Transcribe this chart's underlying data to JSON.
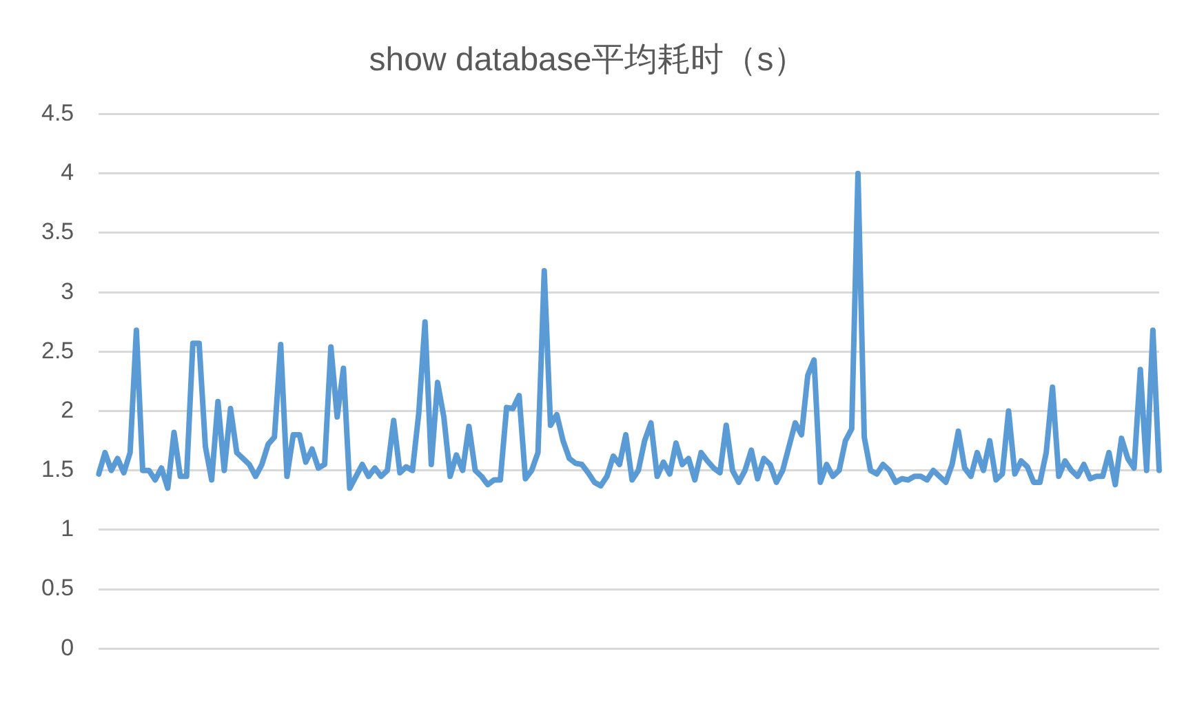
{
  "chart_data": {
    "type": "line",
    "title": "show database平均耗时（s）",
    "categories": [
      null,
      null,
      null,
      null,
      null,
      null,
      null,
      null,
      null,
      null,
      null,
      null,
      null,
      null,
      null,
      null,
      null,
      null,
      null,
      null,
      null,
      null,
      null,
      null,
      null,
      null,
      null,
      null,
      null,
      null,
      null,
      null,
      null,
      null,
      null,
      null,
      null,
      null,
      null,
      null,
      null,
      null,
      null,
      null,
      null,
      null,
      null,
      null,
      null,
      null,
      null,
      null,
      null,
      null,
      null,
      null,
      null,
      null,
      null,
      null,
      null,
      null,
      null,
      null,
      null,
      null,
      null,
      null,
      null,
      null,
      null,
      null,
      null,
      null,
      null,
      null,
      null,
      null,
      null,
      null,
      null,
      null,
      null,
      null,
      null,
      null,
      null,
      null,
      null,
      null,
      null,
      null,
      null,
      null,
      null,
      null,
      null,
      null,
      null,
      null,
      null,
      null,
      null,
      null,
      null,
      null,
      null,
      null,
      null,
      null,
      null,
      null,
      null,
      null,
      null,
      null,
      null,
      null,
      null,
      null,
      null,
      null,
      null,
      null,
      null,
      null,
      null,
      null,
      null,
      null,
      null,
      null,
      null,
      null,
      null,
      null,
      null,
      null,
      null,
      null,
      null,
      null,
      null,
      null,
      null,
      null,
      null,
      null,
      null,
      null,
      null,
      null,
      null,
      null,
      null,
      null,
      null,
      null,
      null,
      null,
      null,
      null,
      null,
      null,
      null,
      null,
      null,
      null,
      null,
      null
    ],
    "series": [
      {
        "color": "#5b9bd5",
        "values": [
          1.47,
          1.65,
          1.5,
          1.6,
          1.48,
          1.65,
          2.68,
          1.5,
          1.5,
          1.42,
          1.52,
          1.35,
          1.82,
          1.45,
          1.45,
          2.57,
          2.57,
          1.7,
          1.42,
          2.08,
          1.5,
          2.02,
          1.65,
          1.6,
          1.55,
          1.45,
          1.55,
          1.72,
          1.78,
          2.56,
          1.45,
          1.8,
          1.8,
          1.57,
          1.68,
          1.52,
          1.55,
          2.54,
          1.95,
          2.36,
          1.35,
          1.45,
          1.55,
          1.45,
          1.52,
          1.45,
          1.5,
          1.92,
          1.48,
          1.53,
          1.5,
          1.98,
          2.75,
          1.55,
          2.24,
          1.95,
          1.45,
          1.63,
          1.5,
          1.87,
          1.5,
          1.45,
          1.38,
          1.42,
          1.42,
          2.03,
          2.02,
          2.13,
          1.43,
          1.5,
          1.65,
          3.18,
          1.88,
          1.97,
          1.75,
          1.6,
          1.56,
          1.55,
          1.48,
          1.4,
          1.37,
          1.45,
          1.62,
          1.55,
          1.8,
          1.42,
          1.5,
          1.75,
          1.9,
          1.45,
          1.57,
          1.47,
          1.73,
          1.55,
          1.6,
          1.42,
          1.65,
          1.58,
          1.52,
          1.48,
          1.88,
          1.5,
          1.4,
          1.5,
          1.67,
          1.43,
          1.6,
          1.55,
          1.4,
          1.5,
          1.7,
          1.9,
          1.8,
          2.3,
          2.43,
          1.4,
          1.55,
          1.45,
          1.5,
          1.75,
          1.85,
          4.0,
          1.78,
          1.5,
          1.47,
          1.55,
          1.5,
          1.4,
          1.43,
          1.42,
          1.45,
          1.45,
          1.42,
          1.5,
          1.45,
          1.4,
          1.55,
          1.83,
          1.52,
          1.45,
          1.65,
          1.5,
          1.75,
          1.42,
          1.47,
          2.0,
          1.47,
          1.58,
          1.53,
          1.4,
          1.4,
          1.65,
          2.2,
          1.45,
          1.58,
          1.5,
          1.45,
          1.55,
          1.43,
          1.45,
          1.45,
          1.65,
          1.38,
          1.77,
          1.6,
          1.52,
          2.35,
          1.5,
          2.68,
          1.5
        ]
      }
    ],
    "ylim": [
      0,
      4.5
    ],
    "yticks": [
      0,
      0.5,
      1,
      1.5,
      2,
      2.5,
      3,
      3.5,
      4,
      4.5
    ],
    "grid": "y",
    "marker": "none",
    "line_style": "solid",
    "legend": false
  }
}
